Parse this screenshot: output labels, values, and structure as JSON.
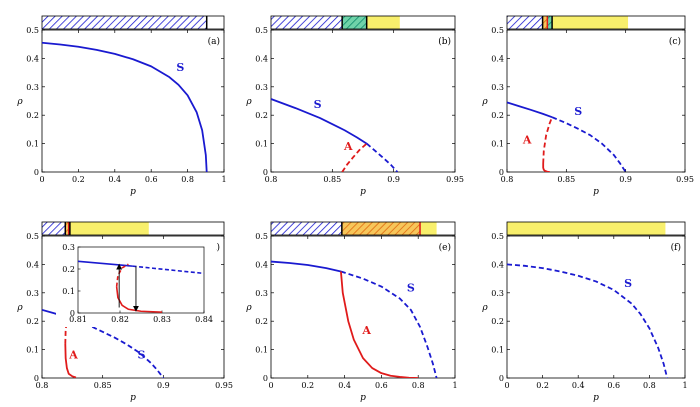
{
  "figure": {
    "colors": {
      "S": "#1a1ad0",
      "A": "#e01b1b",
      "hatch_blue": "#1a1ad0",
      "hatch_green": "#0e8a6b",
      "hatch_orange": "#e06a10",
      "yellow": "#f8ef6c"
    },
    "inset": {
      "xlim": [
        0.81,
        0.84
      ],
      "ylim": [
        0,
        0.3
      ],
      "xticks": [
        "0.81",
        "0.82",
        "0.83",
        "0.84"
      ],
      "yticks": [
        "0",
        "0.1",
        "0.2",
        "0.3"
      ],
      "S_solid": {
        "x": [
          0.81,
          0.823
        ],
        "y": [
          0.235,
          0.213
        ]
      },
      "S_dashed": {
        "x": [
          0.823,
          0.84
        ],
        "y": [
          0.213,
          0.18
        ]
      },
      "A_solid": {
        "x": [
          0.8192,
          0.8195,
          0.8205,
          0.822,
          0.825,
          0.83
        ],
        "y": [
          0.12,
          0.07,
          0.035,
          0.017,
          0.008,
          0.004
        ]
      },
      "A_dashed": {
        "x": [
          0.8192,
          0.8195,
          0.8205,
          0.822
        ],
        "y": [
          0.12,
          0.17,
          0.205,
          0.222
        ]
      },
      "arrows": [
        {
          "x": 0.8198,
          "from": 0.025,
          "to": 0.22
        },
        {
          "x": 0.8238,
          "from": 0.212,
          "to": 0.01
        }
      ]
    }
  },
  "chart_data": [
    {
      "type": "line",
      "panel_label": "(a)",
      "xlabel": "p",
      "ylabel": "ρ",
      "xlim": [
        0,
        1
      ],
      "ylim": [
        0,
        0.5
      ],
      "xticks": [
        "0",
        "0.2",
        "0.4",
        "0.6",
        "0.8",
        "1"
      ],
      "yticks": [
        "0",
        "0.1",
        "0.2",
        "0.3",
        "0.4",
        "0.5"
      ],
      "series": [
        {
          "name": "S",
          "style": "solid",
          "color": "S",
          "x": [
            0,
            0.1,
            0.2,
            0.3,
            0.4,
            0.5,
            0.6,
            0.7,
            0.75,
            0.8,
            0.85,
            0.88,
            0.9,
            0.905
          ],
          "y": [
            0.455,
            0.449,
            0.441,
            0.43,
            0.416,
            0.397,
            0.372,
            0.334,
            0.307,
            0.27,
            0.21,
            0.147,
            0.06,
            0
          ]
        }
      ],
      "bar": [
        {
          "from": 0,
          "to": 0.905,
          "fill": "hatch_blue"
        }
      ],
      "bar_lines": [
        {
          "x": 0.905,
          "color": "#000"
        }
      ],
      "curve_labels": [
        {
          "text": "S",
          "x": 0.76,
          "y": 0.355,
          "color": "S"
        }
      ]
    },
    {
      "type": "line",
      "panel_label": "(b)",
      "xlabel": "p",
      "ylabel": "ρ",
      "xlim": [
        0.8,
        0.95
      ],
      "ylim": [
        0,
        0.5
      ],
      "xticks": [
        "0.8",
        "0.85",
        "0.9",
        "0.95"
      ],
      "yticks": [
        "0",
        "0.1",
        "0.2",
        "0.3",
        "0.4",
        "0.5"
      ],
      "series": [
        {
          "name": "S",
          "style": "solid",
          "color": "S",
          "x": [
            0.8,
            0.82,
            0.84,
            0.86,
            0.87,
            0.878
          ],
          "y": [
            0.257,
            0.225,
            0.19,
            0.147,
            0.122,
            0.1
          ]
        },
        {
          "name": "S",
          "style": "dashed",
          "color": "S",
          "x": [
            0.878,
            0.885,
            0.892,
            0.898,
            0.903
          ],
          "y": [
            0.1,
            0.074,
            0.048,
            0.024,
            0
          ]
        },
        {
          "name": "A",
          "style": "dashed",
          "color": "A",
          "x": [
            0.858,
            0.862,
            0.867,
            0.872,
            0.878
          ],
          "y": [
            0,
            0.026,
            0.052,
            0.077,
            0.1
          ]
        }
      ],
      "bar": [
        {
          "from": 0.8,
          "to": 0.858,
          "fill": "hatch_blue"
        },
        {
          "from": 0.858,
          "to": 0.878,
          "fill": "hatch_green"
        },
        {
          "from": 0.878,
          "to": 0.905,
          "fill": "yellow"
        }
      ],
      "bar_lines": [
        {
          "x": 0.858,
          "color": "#000"
        },
        {
          "x": 0.878,
          "color": "#000"
        }
      ],
      "curve_labels": [
        {
          "text": "S",
          "x": 0.838,
          "y": 0.225,
          "color": "S"
        },
        {
          "text": "A",
          "x": 0.863,
          "y": 0.078,
          "color": "A"
        }
      ]
    },
    {
      "type": "line",
      "panel_label": "(c)",
      "xlabel": "p",
      "ylabel": "ρ",
      "xlim": [
        0.8,
        0.95
      ],
      "ylim": [
        0,
        0.5
      ],
      "xticks": [
        "0.8",
        "0.85",
        "0.9",
        "0.95"
      ],
      "yticks": [
        "0",
        "0.1",
        "0.2",
        "0.3",
        "0.4",
        "0.5"
      ],
      "series": [
        {
          "name": "S",
          "style": "solid",
          "color": "S",
          "x": [
            0.8,
            0.81,
            0.82,
            0.83,
            0.838
          ],
          "y": [
            0.245,
            0.232,
            0.219,
            0.205,
            0.193
          ]
        },
        {
          "name": "S",
          "style": "dashed",
          "color": "S",
          "x": [
            0.838,
            0.85,
            0.86,
            0.87,
            0.88,
            0.89,
            0.895,
            0.9
          ],
          "y": [
            0.193,
            0.172,
            0.152,
            0.13,
            0.1,
            0.06,
            0.032,
            0
          ]
        },
        {
          "name": "A",
          "style": "solid",
          "color": "A",
          "x": [
            0.8305,
            0.8305,
            0.831,
            0.832,
            0.834,
            0.836
          ],
          "y": [
            0.03,
            0.015,
            0.008,
            0.004,
            0.001,
            0
          ]
        },
        {
          "name": "A",
          "style": "dashed",
          "color": "A",
          "x": [
            0.8305,
            0.831,
            0.833,
            0.836,
            0.838
          ],
          "y": [
            0.03,
            0.075,
            0.13,
            0.172,
            0.193
          ]
        }
      ],
      "bar": [
        {
          "from": 0.8,
          "to": 0.83,
          "fill": "hatch_blue"
        },
        {
          "from": 0.83,
          "to": 0.834,
          "fill": "hatch_orange"
        },
        {
          "from": 0.834,
          "to": 0.838,
          "fill": "hatch_green"
        },
        {
          "from": 0.838,
          "to": 0.902,
          "fill": "yellow"
        }
      ],
      "bar_lines": [
        {
          "x": 0.83,
          "color": "#000"
        },
        {
          "x": 0.834,
          "color": "#e01b1b"
        },
        {
          "x": 0.838,
          "color": "#000"
        }
      ],
      "curve_labels": [
        {
          "text": "S",
          "x": 0.86,
          "y": 0.2,
          "color": "S"
        },
        {
          "text": "A",
          "x": 0.817,
          "y": 0.1,
          "color": "A"
        }
      ]
    },
    {
      "type": "line",
      "panel_label": "(d)",
      "xlabel": "p",
      "ylabel": "ρ",
      "xlim": [
        0.8,
        0.95
      ],
      "ylim": [
        0,
        0.5
      ],
      "xticks": [
        "0.8",
        "0.85",
        "0.9",
        "0.95"
      ],
      "yticks": [
        "0",
        "0.1",
        "0.2",
        "0.3",
        "0.4",
        "0.5"
      ],
      "series": [
        {
          "name": "S",
          "style": "solid",
          "color": "S",
          "x": [
            0.8,
            0.81,
            0.823
          ],
          "y": [
            0.24,
            0.228,
            0.211
          ]
        },
        {
          "name": "S",
          "style": "dashed",
          "color": "S",
          "x": [
            0.823,
            0.84,
            0.86,
            0.87,
            0.88,
            0.89,
            0.895,
            0.9
          ],
          "y": [
            0.211,
            0.183,
            0.142,
            0.118,
            0.09,
            0.052,
            0.028,
            0
          ]
        },
        {
          "name": "A",
          "style": "solid",
          "color": "A",
          "x": [
            0.8192,
            0.8195,
            0.8205,
            0.822,
            0.825,
            0.828
          ],
          "y": [
            0.12,
            0.07,
            0.035,
            0.015,
            0.006,
            0.002
          ]
        },
        {
          "name": "A",
          "style": "dashed",
          "color": "A",
          "x": [
            0.8192,
            0.8195,
            0.8205,
            0.822,
            0.823
          ],
          "y": [
            0.12,
            0.17,
            0.2,
            0.208,
            0.211
          ]
        }
      ],
      "bar": [
        {
          "from": 0.8,
          "to": 0.8192,
          "fill": "hatch_blue"
        },
        {
          "from": 0.8192,
          "to": 0.822,
          "fill": "hatch_orange"
        },
        {
          "from": 0.822,
          "to": 0.823,
          "fill": "hatch_green"
        },
        {
          "from": 0.823,
          "to": 0.888,
          "fill": "yellow"
        }
      ],
      "bar_lines": [
        {
          "x": 0.8192,
          "color": "#000"
        },
        {
          "x": 0.822,
          "color": "#e01b1b"
        },
        {
          "x": 0.823,
          "color": "#000"
        }
      ],
      "curve_labels": [
        {
          "text": "S",
          "x": 0.882,
          "y": 0.068,
          "color": "S"
        },
        {
          "text": "A",
          "x": 0.826,
          "y": 0.068,
          "color": "A"
        }
      ],
      "has_inset": true
    },
    {
      "type": "line",
      "panel_label": "(e)",
      "xlabel": "p",
      "ylabel": "ρ",
      "xlim": [
        0,
        1
      ],
      "ylim": [
        0,
        0.5
      ],
      "xticks": [
        "0",
        "0.2",
        "0.4",
        "0.6",
        "0.8",
        "1"
      ],
      "yticks": [
        "0",
        "0.1",
        "0.2",
        "0.3",
        "0.4",
        "0.5"
      ],
      "series": [
        {
          "name": "S",
          "style": "solid",
          "color": "S",
          "x": [
            0,
            0.1,
            0.2,
            0.3,
            0.38
          ],
          "y": [
            0.41,
            0.405,
            0.398,
            0.387,
            0.375
          ]
        },
        {
          "name": "S",
          "style": "dashed",
          "color": "S",
          "x": [
            0.38,
            0.5,
            0.6,
            0.7,
            0.76,
            0.81,
            0.85,
            0.88,
            0.9
          ],
          "y": [
            0.375,
            0.35,
            0.322,
            0.28,
            0.24,
            0.18,
            0.11,
            0.05,
            0
          ]
        },
        {
          "name": "A",
          "style": "solid",
          "color": "A",
          "x": [
            0.38,
            0.39,
            0.42,
            0.45,
            0.5,
            0.55,
            0.6,
            0.65,
            0.7,
            0.75,
            0.8
          ],
          "y": [
            0.375,
            0.3,
            0.2,
            0.135,
            0.07,
            0.035,
            0.017,
            0.008,
            0.004,
            0.001,
            0
          ]
        }
      ],
      "bar": [
        {
          "from": 0,
          "to": 0.385,
          "fill": "hatch_blue"
        },
        {
          "from": 0.385,
          "to": 0.81,
          "fill": "hatch_orange"
        },
        {
          "from": 0.81,
          "to": 0.9,
          "fill": "yellow"
        }
      ],
      "bar_lines": [
        {
          "x": 0.385,
          "color": "#000"
        },
        {
          "x": 0.81,
          "color": "#e01b1b"
        }
      ],
      "curve_labels": [
        {
          "text": "S",
          "x": 0.76,
          "y": 0.305,
          "color": "S"
        },
        {
          "text": "A",
          "x": 0.52,
          "y": 0.155,
          "color": "A"
        }
      ]
    },
    {
      "type": "line",
      "panel_label": "(f)",
      "xlabel": "p",
      "ylabel": "ρ",
      "xlim": [
        0,
        1
      ],
      "ylim": [
        0,
        0.5
      ],
      "xticks": [
        "0",
        "0.2",
        "0.4",
        "0.6",
        "0.8",
        "1"
      ],
      "yticks": [
        "0",
        "0.1",
        "0.2",
        "0.3",
        "0.4",
        "0.5"
      ],
      "series": [
        {
          "name": "S",
          "style": "dashed",
          "color": "S",
          "x": [
            0,
            0.1,
            0.2,
            0.3,
            0.4,
            0.5,
            0.6,
            0.7,
            0.75,
            0.8,
            0.85,
            0.88,
            0.9
          ],
          "y": [
            0.4,
            0.395,
            0.387,
            0.375,
            0.36,
            0.34,
            0.31,
            0.262,
            0.225,
            0.175,
            0.105,
            0.05,
            0
          ]
        }
      ],
      "bar": [
        {
          "from": 0,
          "to": 0.89,
          "fill": "yellow"
        }
      ],
      "bar_lines": [],
      "curve_labels": [
        {
          "text": "S",
          "x": 0.68,
          "y": 0.32,
          "color": "S"
        }
      ]
    }
  ]
}
